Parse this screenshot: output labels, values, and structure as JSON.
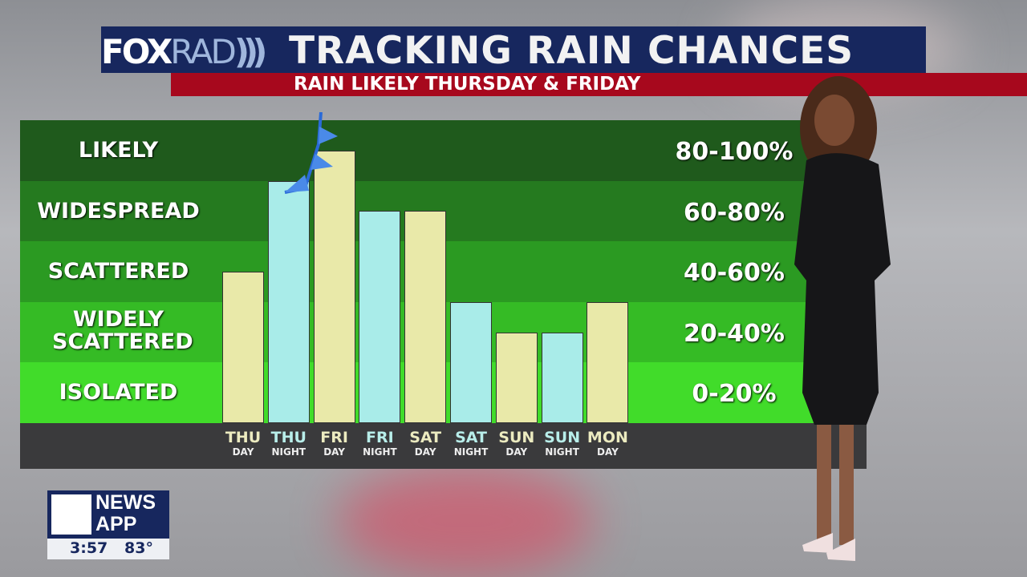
{
  "header": {
    "logo_text_1": "FOX",
    "logo_text_2": "RAD",
    "title": "TRACKING RAIN CHANCES",
    "subtitle": "RAIN LIKELY THURSDAY & FRIDAY"
  },
  "chart_data": {
    "type": "bar",
    "title": "TRACKING RAIN CHANCES",
    "categories": [
      {
        "day": "THU",
        "period": "DAY"
      },
      {
        "day": "THU",
        "period": "NIGHT"
      },
      {
        "day": "FRI",
        "period": "DAY"
      },
      {
        "day": "FRI",
        "period": "NIGHT"
      },
      {
        "day": "SAT",
        "period": "DAY"
      },
      {
        "day": "SAT",
        "period": "NIGHT"
      },
      {
        "day": "SUN",
        "period": "DAY"
      },
      {
        "day": "SUN",
        "period": "NIGHT"
      },
      {
        "day": "MON",
        "period": "DAY"
      }
    ],
    "values": [
      50,
      80,
      90,
      70,
      70,
      40,
      30,
      30,
      40
    ],
    "ylim": [
      0,
      100
    ],
    "bands": [
      {
        "label": "LIKELY",
        "range": "80-100%",
        "color": "#1f5a1c"
      },
      {
        "label": "WIDESPREAD",
        "range": "60-80%",
        "color": "#257a1f"
      },
      {
        "label": "SCATTERED",
        "range": "40-60%",
        "color": "#2b9a22"
      },
      {
        "label": "WIDELY SCATTERED",
        "range": "20-40%",
        "color": "#35bb25"
      },
      {
        "label": "ISOLATED",
        "range": "0-20%",
        "color": "#41dc2a"
      }
    ],
    "colors": {
      "day": "#e9e9a9",
      "night": "#a9ece9"
    },
    "annotation": "cold-front symbol near THU NIGHT / FRI DAY"
  },
  "bug": {
    "app_line1": "NEWS",
    "app_line2": "APP",
    "time": "3:57",
    "temp": "83°"
  }
}
